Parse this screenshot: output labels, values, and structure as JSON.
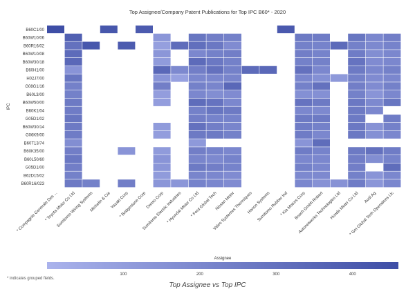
{
  "chart_data": {
    "type": "heatmap",
    "title": "Top Assignee/Company Patent Publications for Top IPC B60* - 2020",
    "ylabel": "IPC",
    "caption": "Top Assignee vs Top IPC",
    "footnote": "* indicates grouped fields.",
    "colorbar": {
      "label": "Assignee",
      "ticks": [
        100,
        200,
        300,
        400
      ],
      "range": [
        0,
        460
      ],
      "color_low": "#aab3ec",
      "color_high": "#3e4ea6"
    },
    "x_categories": [
      "* Compagnie Generale Des ...",
      "* Toyota Motor Co Ltd",
      "Sumitomo Wiring Systems",
      "Michelin & Cie",
      "Yazaki Corp",
      "* Bridgestone Corp",
      "Denso Corp",
      "Sumitomo Electric Industries",
      "* Hyundai Motor Co Ltd",
      "* Ford Global Tech",
      "Nissan Motor",
      "Valeo Systemes Thermiques",
      "Hanon Systems",
      "Sumitomo Rubber Ind",
      "* Kia Motors Corp",
      "Bosch Gmbh Robert",
      "Autonetworks Technologies Ltd",
      "Honda Motor Co Ltd",
      "Audi Ag",
      "* Gm Global Tech Operations Llc"
    ],
    "y_categories": [
      "B60C1/00",
      "B60W10/06",
      "B60R16/02",
      "B60W10/08",
      "B60W30/18",
      "B60H1/00",
      "H02J7/00",
      "G08G1/16",
      "B60L3/00",
      "B60W50/00",
      "B60K1/04",
      "G05D1/02",
      "B60W30/14",
      "G06K9/00",
      "B60T13/74",
      "B60K35/00",
      "B60L50/60",
      "G05D1/00",
      "B62D15/02",
      "B60R16/023"
    ],
    "values": [
      [
        460,
        null,
        null,
        420,
        null,
        400,
        null,
        null,
        null,
        null,
        null,
        null,
        null,
        410,
        null,
        null,
        null,
        null,
        null,
        null
      ],
      [
        null,
        380,
        null,
        null,
        null,
        null,
        130,
        null,
        280,
        240,
        230,
        null,
        null,
        null,
        260,
        250,
        null,
        280,
        200,
        240
      ],
      [
        null,
        300,
        420,
        null,
        400,
        null,
        90,
        320,
        310,
        270,
        180,
        null,
        null,
        null,
        230,
        220,
        330,
        230,
        190,
        220
      ],
      [
        null,
        330,
        null,
        null,
        null,
        null,
        130,
        null,
        200,
        230,
        240,
        null,
        null,
        null,
        240,
        220,
        null,
        250,
        170,
        200
      ],
      [
        null,
        340,
        null,
        null,
        null,
        null,
        110,
        null,
        330,
        270,
        230,
        null,
        null,
        null,
        230,
        230,
        null,
        290,
        180,
        200
      ],
      [
        null,
        140,
        null,
        null,
        null,
        null,
        340,
        190,
        240,
        300,
        230,
        330,
        340,
        null,
        300,
        200,
        null,
        260,
        200,
        230
      ],
      [
        null,
        280,
        null,
        null,
        null,
        null,
        140,
        80,
        200,
        200,
        210,
        null,
        null,
        null,
        200,
        160,
        120,
        230,
        180,
        200
      ],
      [
        null,
        230,
        null,
        null,
        null,
        null,
        240,
        null,
        230,
        210,
        340,
        null,
        null,
        null,
        230,
        300,
        null,
        240,
        180,
        230
      ],
      [
        null,
        230,
        null,
        null,
        null,
        null,
        100,
        null,
        200,
        170,
        180,
        null,
        null,
        null,
        160,
        160,
        null,
        230,
        140,
        200
      ],
      [
        null,
        260,
        null,
        null,
        null,
        null,
        100,
        null,
        320,
        290,
        200,
        null,
        null,
        null,
        290,
        260,
        null,
        270,
        190,
        280
      ],
      [
        null,
        250,
        null,
        null,
        null,
        null,
        null,
        null,
        230,
        280,
        260,
        null,
        null,
        null,
        200,
        190,
        null,
        260,
        200,
        null
      ],
      [
        null,
        280,
        null,
        null,
        null,
        null,
        null,
        null,
        240,
        220,
        220,
        null,
        null,
        null,
        260,
        260,
        null,
        260,
        null,
        250
      ],
      [
        null,
        260,
        null,
        null,
        null,
        null,
        110,
        null,
        300,
        240,
        210,
        null,
        null,
        null,
        250,
        230,
        null,
        270,
        150,
        230
      ],
      [
        null,
        250,
        null,
        null,
        null,
        null,
        100,
        null,
        260,
        260,
        230,
        null,
        null,
        null,
        250,
        200,
        null,
        270,
        160,
        200
      ],
      [
        null,
        170,
        null,
        null,
        null,
        null,
        null,
        null,
        120,
        null,
        null,
        null,
        null,
        null,
        140,
        320,
        null,
        null,
        null,
        null
      ],
      [
        null,
        240,
        null,
        null,
        140,
        null,
        110,
        null,
        240,
        220,
        200,
        null,
        null,
        null,
        250,
        220,
        null,
        260,
        300,
        250
      ],
      [
        null,
        270,
        null,
        null,
        null,
        null,
        140,
        null,
        210,
        190,
        220,
        null,
        null,
        null,
        200,
        200,
        null,
        240,
        170,
        220
      ],
      [
        null,
        240,
        null,
        null,
        null,
        null,
        130,
        null,
        260,
        240,
        220,
        null,
        null,
        null,
        230,
        200,
        null,
        240,
        null,
        320
      ],
      [
        null,
        230,
        null,
        null,
        null,
        null,
        110,
        null,
        210,
        200,
        180,
        null,
        null,
        null,
        190,
        190,
        null,
        230,
        140,
        200
      ],
      [
        null,
        260,
        230,
        null,
        240,
        null,
        130,
        130,
        220,
        200,
        180,
        null,
        null,
        null,
        200,
        150,
        150,
        250,
        130,
        200
      ]
    ]
  }
}
